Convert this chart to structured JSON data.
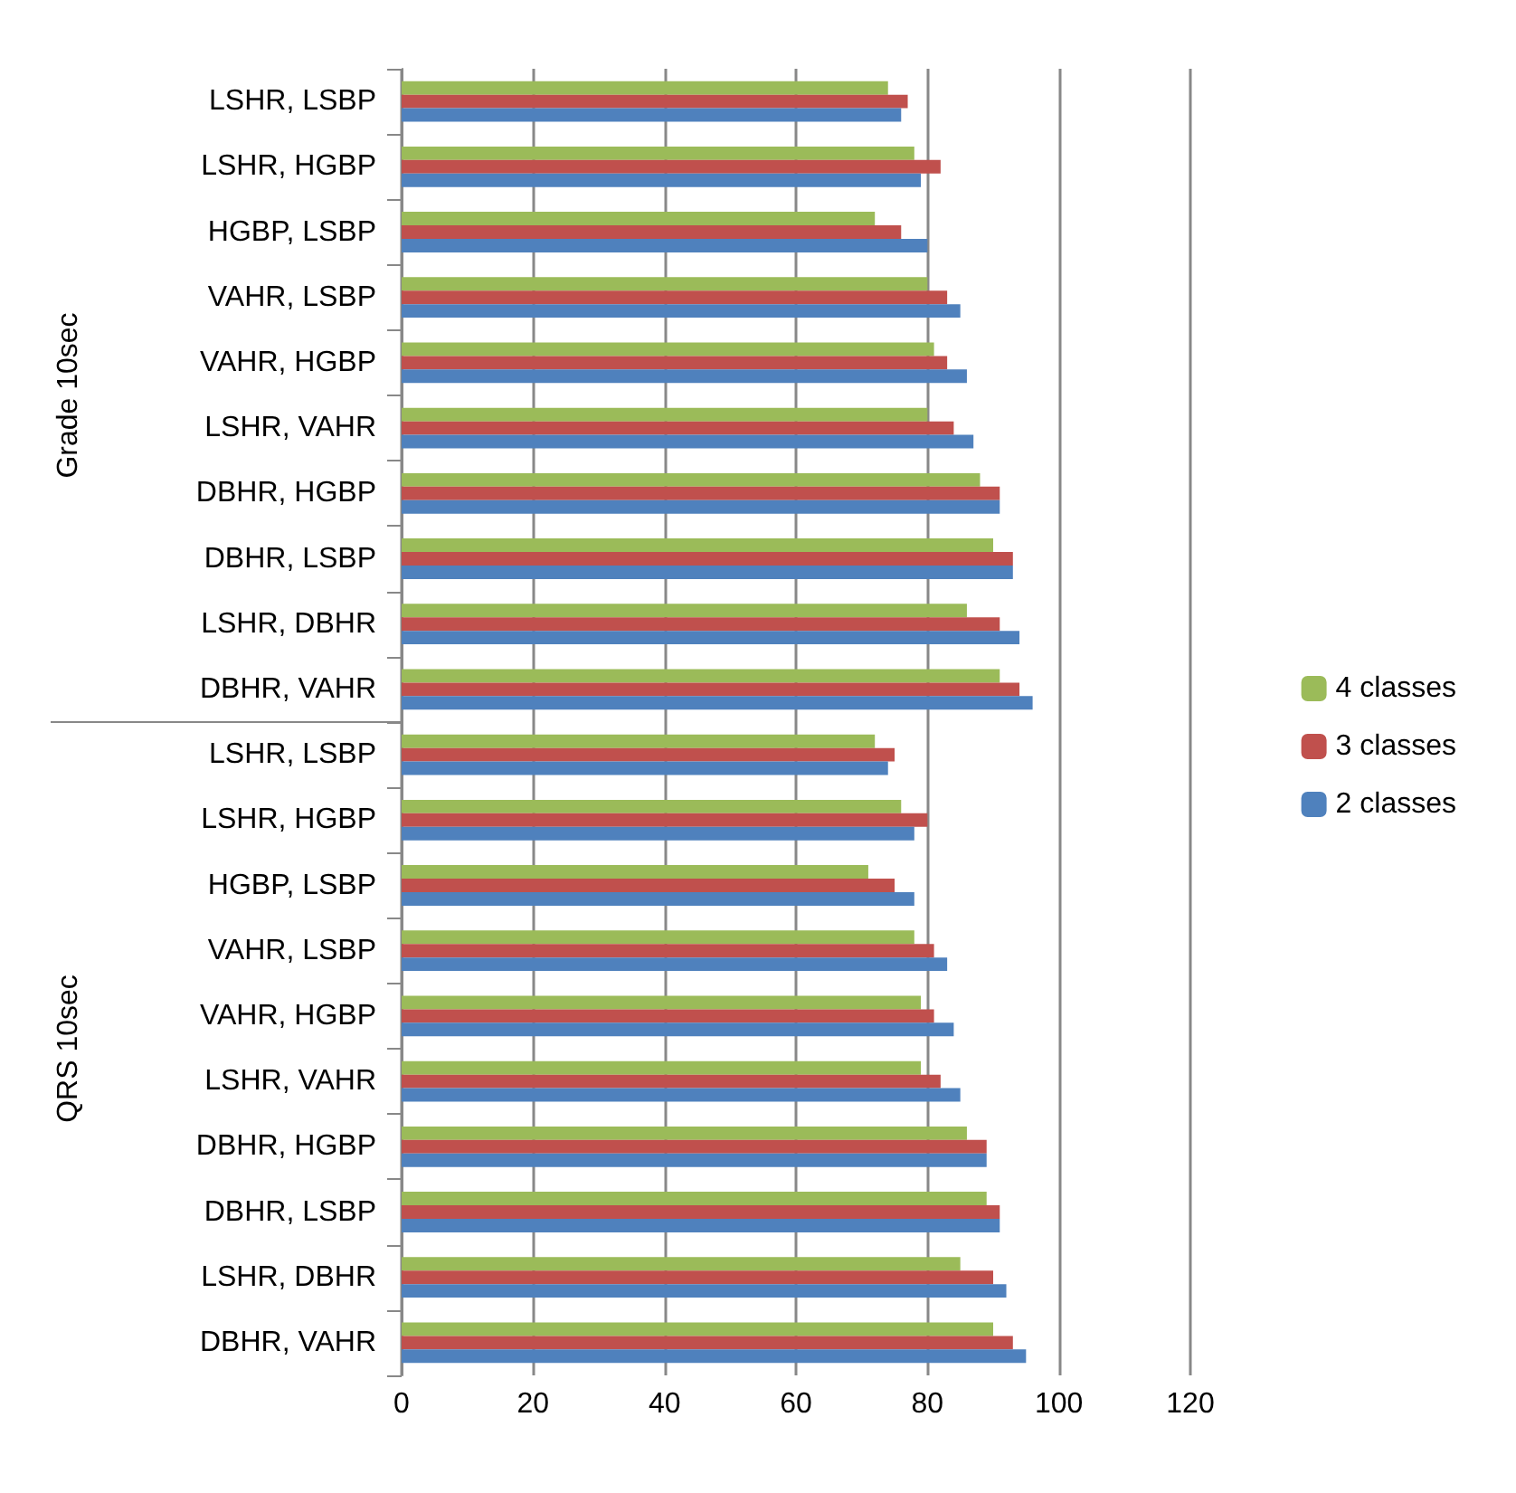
{
  "chart_data": {
    "type": "bar",
    "orientation": "horizontal",
    "categories": [
      "LSHR, LSBP",
      "LSHR, HGBP",
      "HGBP, LSBP",
      "VAHR, LSBP",
      "VAHR, HGBP",
      "LSHR, VAHR",
      "DBHR, HGBP",
      "DBHR, LSBP",
      "LSHR, DBHR",
      "DBHR, VAHR",
      "LSHR, LSBP",
      "LSHR, HGBP",
      "HGBP, LSBP",
      "VAHR, LSBP",
      "VAHR, HGBP",
      "LSHR, VAHR",
      "DBHR, HGBP",
      "DBHR, LSBP",
      "LSHR, DBHR",
      "DBHR, VAHR"
    ],
    "series": [
      {
        "name": "4 classes",
        "color": "#9bbb59",
        "values": [
          74,
          78,
          72,
          80,
          81,
          80,
          88,
          90,
          86,
          91,
          72,
          76,
          71,
          78,
          79,
          79,
          86,
          89,
          85,
          90
        ]
      },
      {
        "name": "3 classes",
        "color": "#c0504d",
        "values": [
          77,
          82,
          76,
          83,
          83,
          84,
          91,
          93,
          91,
          94,
          75,
          80,
          75,
          81,
          81,
          82,
          89,
          91,
          90,
          93
        ]
      },
      {
        "name": "2 classes",
        "color": "#4f81bd",
        "values": [
          76,
          79,
          80,
          85,
          86,
          87,
          91,
          93,
          94,
          96,
          74,
          78,
          78,
          83,
          84,
          85,
          89,
          91,
          92,
          95
        ]
      }
    ],
    "annotations": [
      "Grade 10sec",
      "QRS 10sec"
    ],
    "xlim": [
      0,
      120
    ],
    "xticks": [
      0,
      20,
      40,
      60,
      80,
      100,
      120
    ],
    "grid": "x",
    "legend": "right"
  }
}
